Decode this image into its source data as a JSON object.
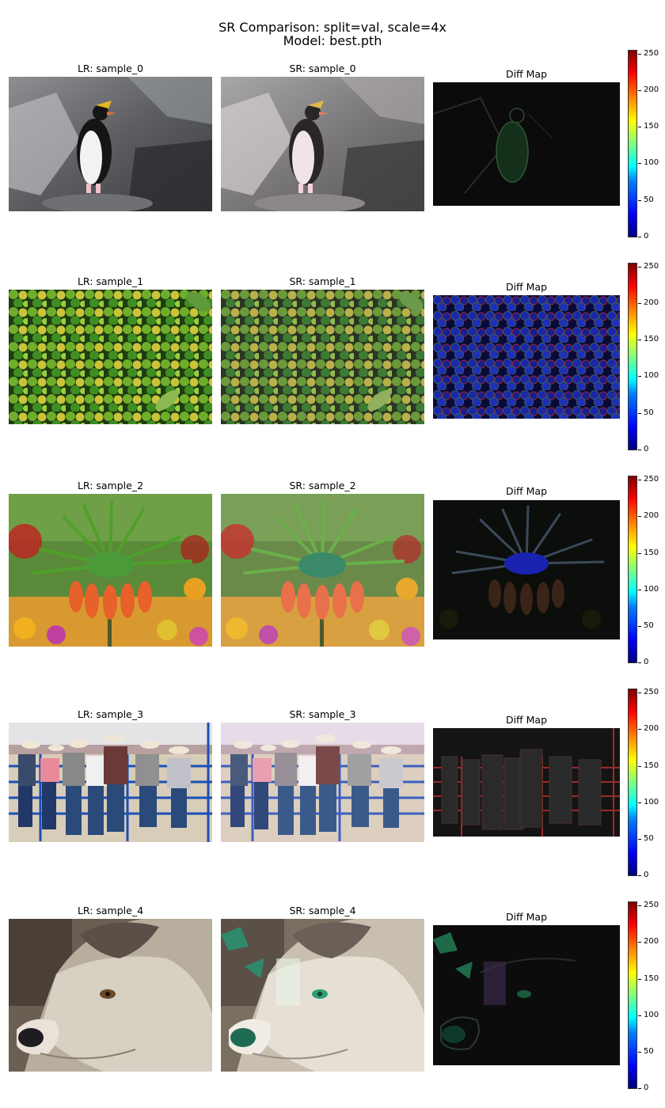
{
  "figure": {
    "title_line1": "SR Comparison: split=val, scale=4x",
    "title_line2": "Model: best.pth"
  },
  "colorbar": {
    "colormap": "jet",
    "range": [
      0,
      255
    ],
    "ticks": [
      "0",
      "50",
      "100",
      "150",
      "200",
      "250"
    ]
  },
  "rows": [
    {
      "lr_title": "LR: sample_0",
      "sr_title": "SR: sample_0",
      "diff_title": "Diff Map",
      "subject": "penguin on rocks"
    },
    {
      "lr_title": "LR: sample_1",
      "sr_title": "SR: sample_1",
      "diff_title": "Diff Map",
      "subject": "green and yellow citrus fruits"
    },
    {
      "lr_title": "LR: sample_2",
      "sr_title": "SR: sample_2",
      "diff_title": "Diff Map",
      "subject": "orange crown imperial flower"
    },
    {
      "lr_title": "LR: sample_3",
      "sr_title": "SR: sample_3",
      "diff_title": "Diff Map",
      "subject": "cowboys leaning on blue fence"
    },
    {
      "lr_title": "LR: sample_4",
      "sr_title": "SR: sample_4",
      "diff_title": "Diff Map",
      "subject": "wolf face close-up"
    }
  ]
}
